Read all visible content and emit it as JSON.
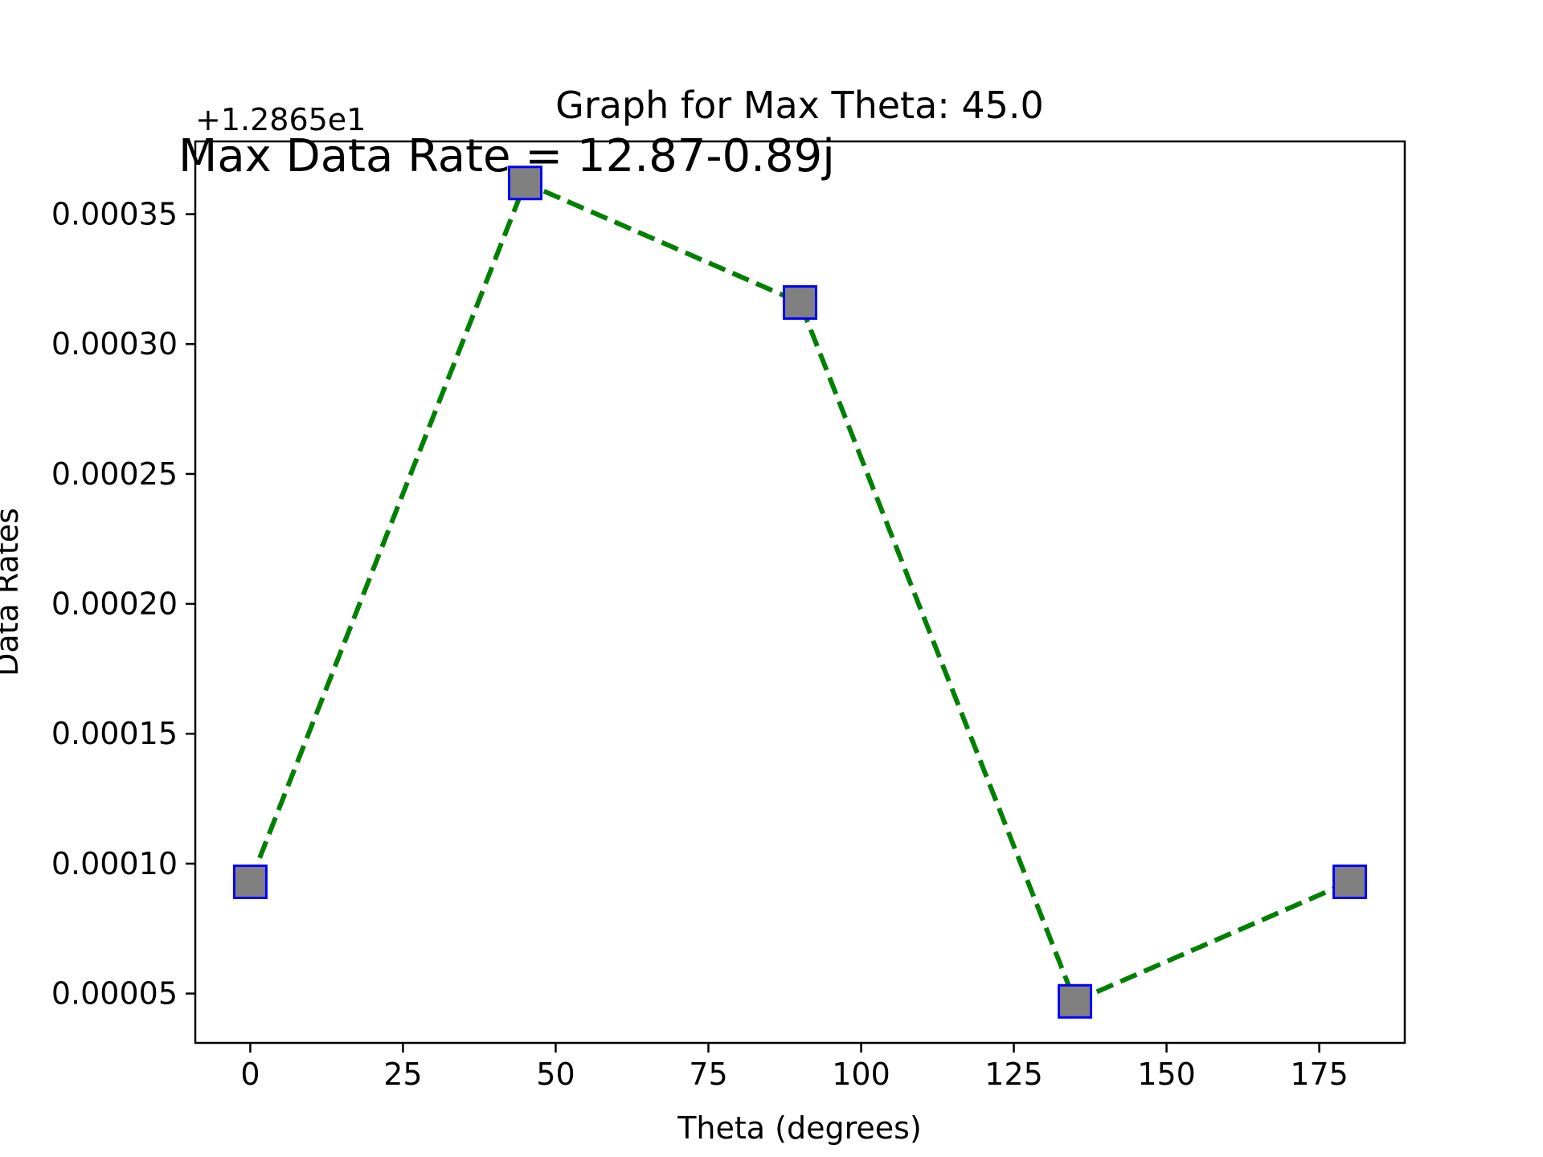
{
  "chart_data": {
    "type": "line",
    "title": "Graph for Max Theta: 45.0",
    "xlabel": "Theta (degrees)",
    "ylabel": "Data Rates",
    "offset_label": "+1.2865e1",
    "annotation": "Max Data Rate = 12.87-0.89j",
    "x": [
      0,
      45,
      90,
      135,
      180
    ],
    "series": [
      {
        "values": [
          9.3e-05,
          0.000362,
          0.000316,
          4.7e-05,
          9.3e-05
        ]
      }
    ],
    "xlim": [
      -9,
      189
    ],
    "ylim": [
      3.1e-05,
      0.000378
    ],
    "xticks": [
      0,
      25,
      50,
      75,
      100,
      125,
      150,
      175
    ],
    "xtick_labels": [
      "0",
      "25",
      "50",
      "75",
      "100",
      "125",
      "150",
      "175"
    ],
    "yticks": [
      5e-05,
      0.0001,
      0.00015,
      0.0002,
      0.00025,
      0.0003,
      0.00035
    ],
    "ytick_labels": [
      "0.00005",
      "0.00010",
      "0.00015",
      "0.00020",
      "0.00025",
      "0.00030",
      "0.00035"
    ],
    "grid": false,
    "colors": {
      "line": "#008000",
      "marker_fill": "#808080",
      "marker_edge": "#0000ff",
      "axes": "#000000"
    },
    "line_style": "dashed",
    "marker": "square"
  }
}
